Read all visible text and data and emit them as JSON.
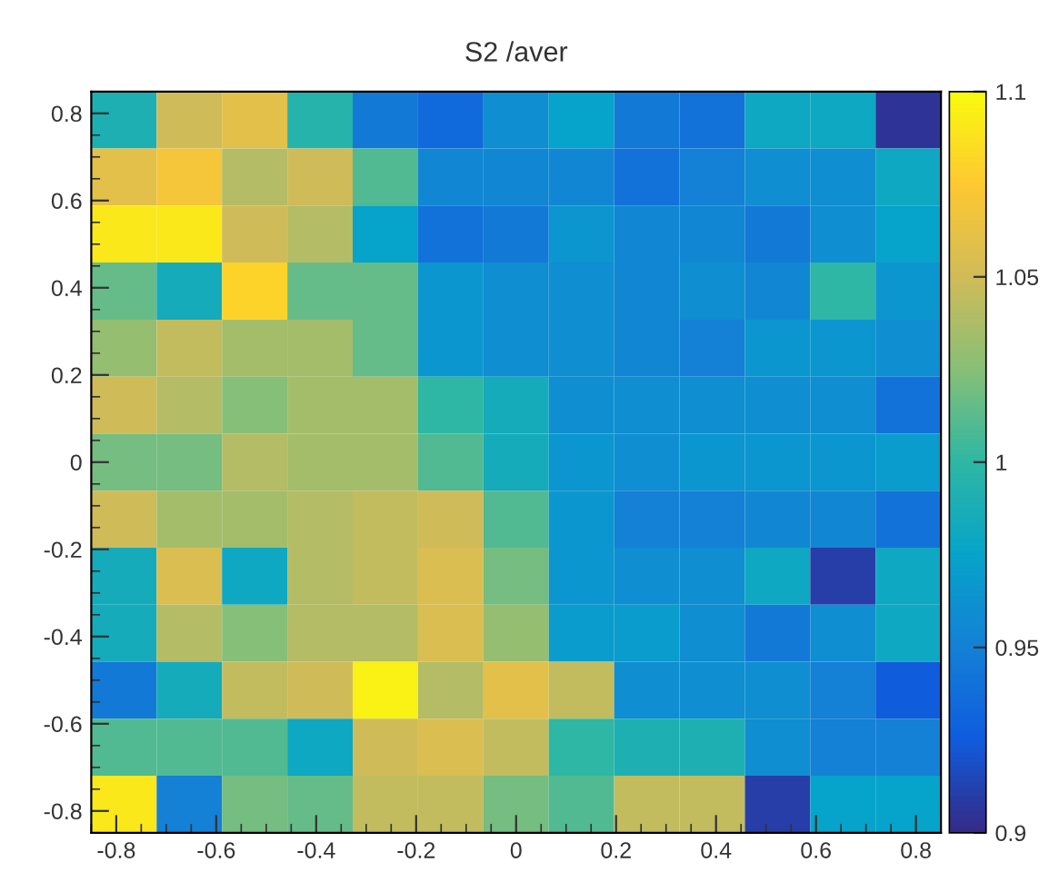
{
  "chart_data": {
    "type": "heatmap",
    "title": "S2 /aver",
    "cells": [
      [
        0.99,
        1.05,
        1.06,
        0.995,
        0.945,
        0.935,
        0.96,
        0.975,
        0.945,
        0.94,
        0.98,
        0.98,
        0.905
      ],
      [
        1.06,
        1.07,
        1.04,
        1.05,
        1.01,
        0.955,
        0.955,
        0.955,
        0.94,
        0.95,
        0.96,
        0.96,
        0.98
      ],
      [
        1.09,
        1.09,
        1.05,
        1.04,
        0.975,
        0.94,
        0.945,
        0.965,
        0.955,
        0.955,
        0.945,
        0.96,
        0.975
      ],
      [
        1.015,
        0.985,
        1.08,
        1.015,
        1.015,
        0.965,
        0.96,
        0.96,
        0.955,
        0.96,
        0.955,
        1.0,
        0.965
      ],
      [
        1.03,
        1.045,
        1.035,
        1.035,
        1.015,
        0.965,
        0.96,
        0.96,
        0.955,
        0.95,
        0.965,
        0.965,
        0.96
      ],
      [
        1.05,
        1.04,
        1.025,
        1.035,
        1.035,
        1.0,
        0.985,
        0.96,
        0.96,
        0.96,
        0.96,
        0.96,
        0.94
      ],
      [
        1.02,
        1.02,
        1.04,
        1.035,
        1.035,
        1.01,
        0.985,
        0.965,
        0.96,
        0.965,
        0.965,
        0.965,
        0.97
      ],
      [
        1.05,
        1.035,
        1.035,
        1.04,
        1.045,
        1.05,
        1.01,
        0.965,
        0.95,
        0.95,
        0.955,
        0.955,
        0.94
      ],
      [
        0.985,
        1.055,
        0.98,
        1.04,
        1.045,
        1.055,
        1.02,
        0.965,
        0.96,
        0.96,
        0.98,
        0.91,
        0.98
      ],
      [
        0.985,
        1.04,
        1.025,
        1.04,
        1.04,
        1.055,
        1.03,
        0.97,
        0.97,
        0.96,
        0.945,
        0.96,
        0.98
      ],
      [
        0.945,
        0.985,
        1.045,
        1.05,
        1.095,
        1.04,
        1.06,
        1.045,
        0.96,
        0.96,
        0.96,
        0.95,
        0.925
      ],
      [
        1.01,
        1.01,
        1.01,
        0.98,
        1.05,
        1.055,
        1.045,
        1.0,
        0.99,
        0.99,
        0.96,
        0.95,
        0.95
      ],
      [
        1.09,
        0.95,
        1.02,
        1.015,
        1.045,
        1.045,
        1.02,
        1.01,
        1.045,
        1.045,
        0.91,
        0.975,
        0.975
      ]
    ],
    "xlim": [
      -0.85,
      0.85
    ],
    "ylim": [
      -0.85,
      0.85
    ],
    "xticks": [
      -0.8,
      -0.6,
      -0.4,
      -0.2,
      0,
      0.2,
      0.4,
      0.6,
      0.8
    ],
    "yticks": [
      -0.8,
      -0.6,
      -0.4,
      -0.2,
      0,
      0.2,
      0.4,
      0.6,
      0.8
    ],
    "clim": [
      0.9,
      1.1
    ],
    "cticks": [
      0.9,
      0.95,
      1,
      1.05,
      1.1
    ],
    "grid": false
  }
}
